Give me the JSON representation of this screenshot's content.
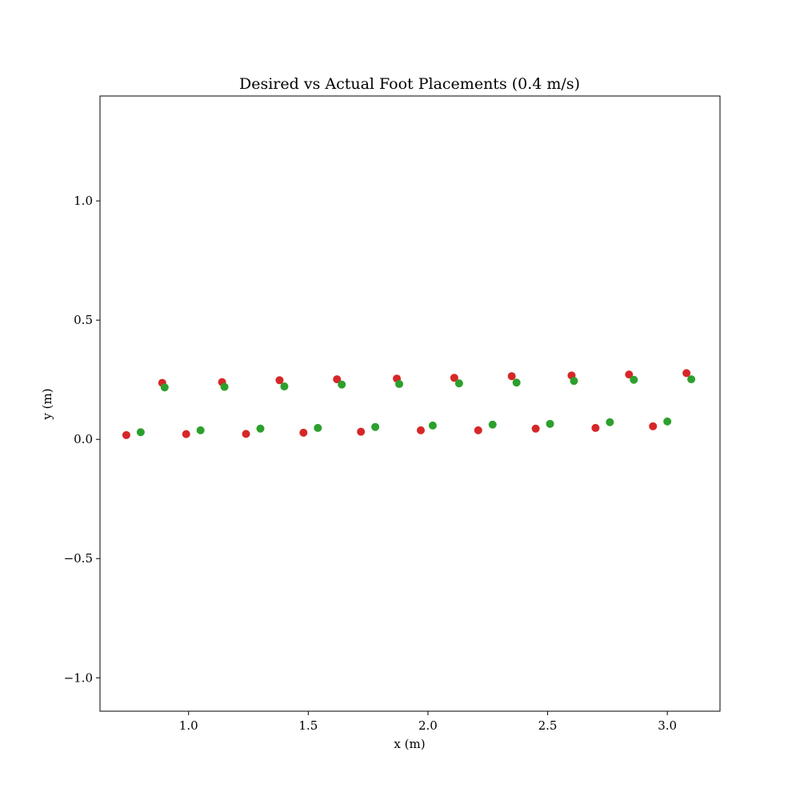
{
  "chart_data": {
    "type": "scatter",
    "title": "Desired vs Actual Foot Placements (0.4 m/s)",
    "xlabel": "x (m)",
    "ylabel": "y (m)",
    "xlim": [
      0.63,
      3.22
    ],
    "ylim": [
      -1.14,
      1.44
    ],
    "x_ticks": [
      1.0,
      1.5,
      2.0,
      2.5,
      3.0
    ],
    "x_tick_labels": [
      "1.0",
      "1.5",
      "2.0",
      "2.5",
      "3.0"
    ],
    "y_ticks": [
      -1.0,
      -0.5,
      0.0,
      0.5,
      1.0
    ],
    "y_tick_labels": [
      "−1.0",
      "−0.5",
      "0.0",
      "0.5",
      "1.0"
    ],
    "grid": false,
    "legend": null,
    "series": [
      {
        "color": "#d62728",
        "points": [
          [
            0.74,
            0.018
          ],
          [
            0.89,
            0.237
          ],
          [
            0.99,
            0.022
          ],
          [
            1.14,
            0.24
          ],
          [
            1.24,
            0.023
          ],
          [
            1.38,
            0.248
          ],
          [
            1.48,
            0.028
          ],
          [
            1.62,
            0.252
          ],
          [
            1.72,
            0.032
          ],
          [
            1.87,
            0.255
          ],
          [
            1.97,
            0.038
          ],
          [
            2.11,
            0.258
          ],
          [
            2.21,
            0.038
          ],
          [
            2.35,
            0.265
          ],
          [
            2.45,
            0.045
          ],
          [
            2.6,
            0.268
          ],
          [
            2.7,
            0.048
          ],
          [
            2.84,
            0.272
          ],
          [
            2.94,
            0.055
          ],
          [
            3.08,
            0.278
          ]
        ]
      },
      {
        "color": "#2ca02c",
        "points": [
          [
            0.8,
            0.03
          ],
          [
            0.9,
            0.218
          ],
          [
            1.05,
            0.038
          ],
          [
            1.15,
            0.22
          ],
          [
            1.3,
            0.045
          ],
          [
            1.4,
            0.222
          ],
          [
            1.54,
            0.048
          ],
          [
            1.64,
            0.23
          ],
          [
            1.78,
            0.052
          ],
          [
            1.88,
            0.232
          ],
          [
            2.02,
            0.058
          ],
          [
            2.13,
            0.235
          ],
          [
            2.27,
            0.062
          ],
          [
            2.37,
            0.238
          ],
          [
            2.51,
            0.065
          ],
          [
            2.61,
            0.245
          ],
          [
            2.76,
            0.072
          ],
          [
            2.86,
            0.25
          ],
          [
            3.0,
            0.075
          ],
          [
            3.1,
            0.252
          ]
        ]
      }
    ]
  }
}
